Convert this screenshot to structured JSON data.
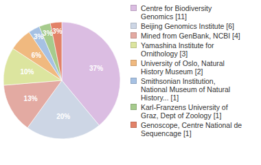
{
  "chart_data": {
    "type": "pie",
    "categories": [
      "Centre for Biodiversity Genomics [11]",
      "Beijing Genomics Institute [6]",
      "Mined from GenBank, NCBI [4]",
      "Yamashina Institute for Ornithology [3]",
      "University of Oslo, Natural History Museum [2]",
      "Smithsonian Institution, National Museum of Natural History... [1]",
      "Karl-Franzens University of Graz, Dept of Zoology [1]",
      "Genoscope, Centre National de Sequencage [1]"
    ],
    "values": [
      37,
      20,
      13,
      10,
      6,
      3,
      3,
      3
    ],
    "value_labels": [
      "37%",
      "20%",
      "13%",
      "10%",
      "6%",
      "3%",
      "3%",
      "3%"
    ],
    "colors": [
      "#dbbde2",
      "#cdd6e5",
      "#e3aaa2",
      "#dce59f",
      "#f0b97f",
      "#a6c1e3",
      "#a6cb8d",
      "#e28268"
    ],
    "data_labels": true,
    "legend": "right"
  }
}
